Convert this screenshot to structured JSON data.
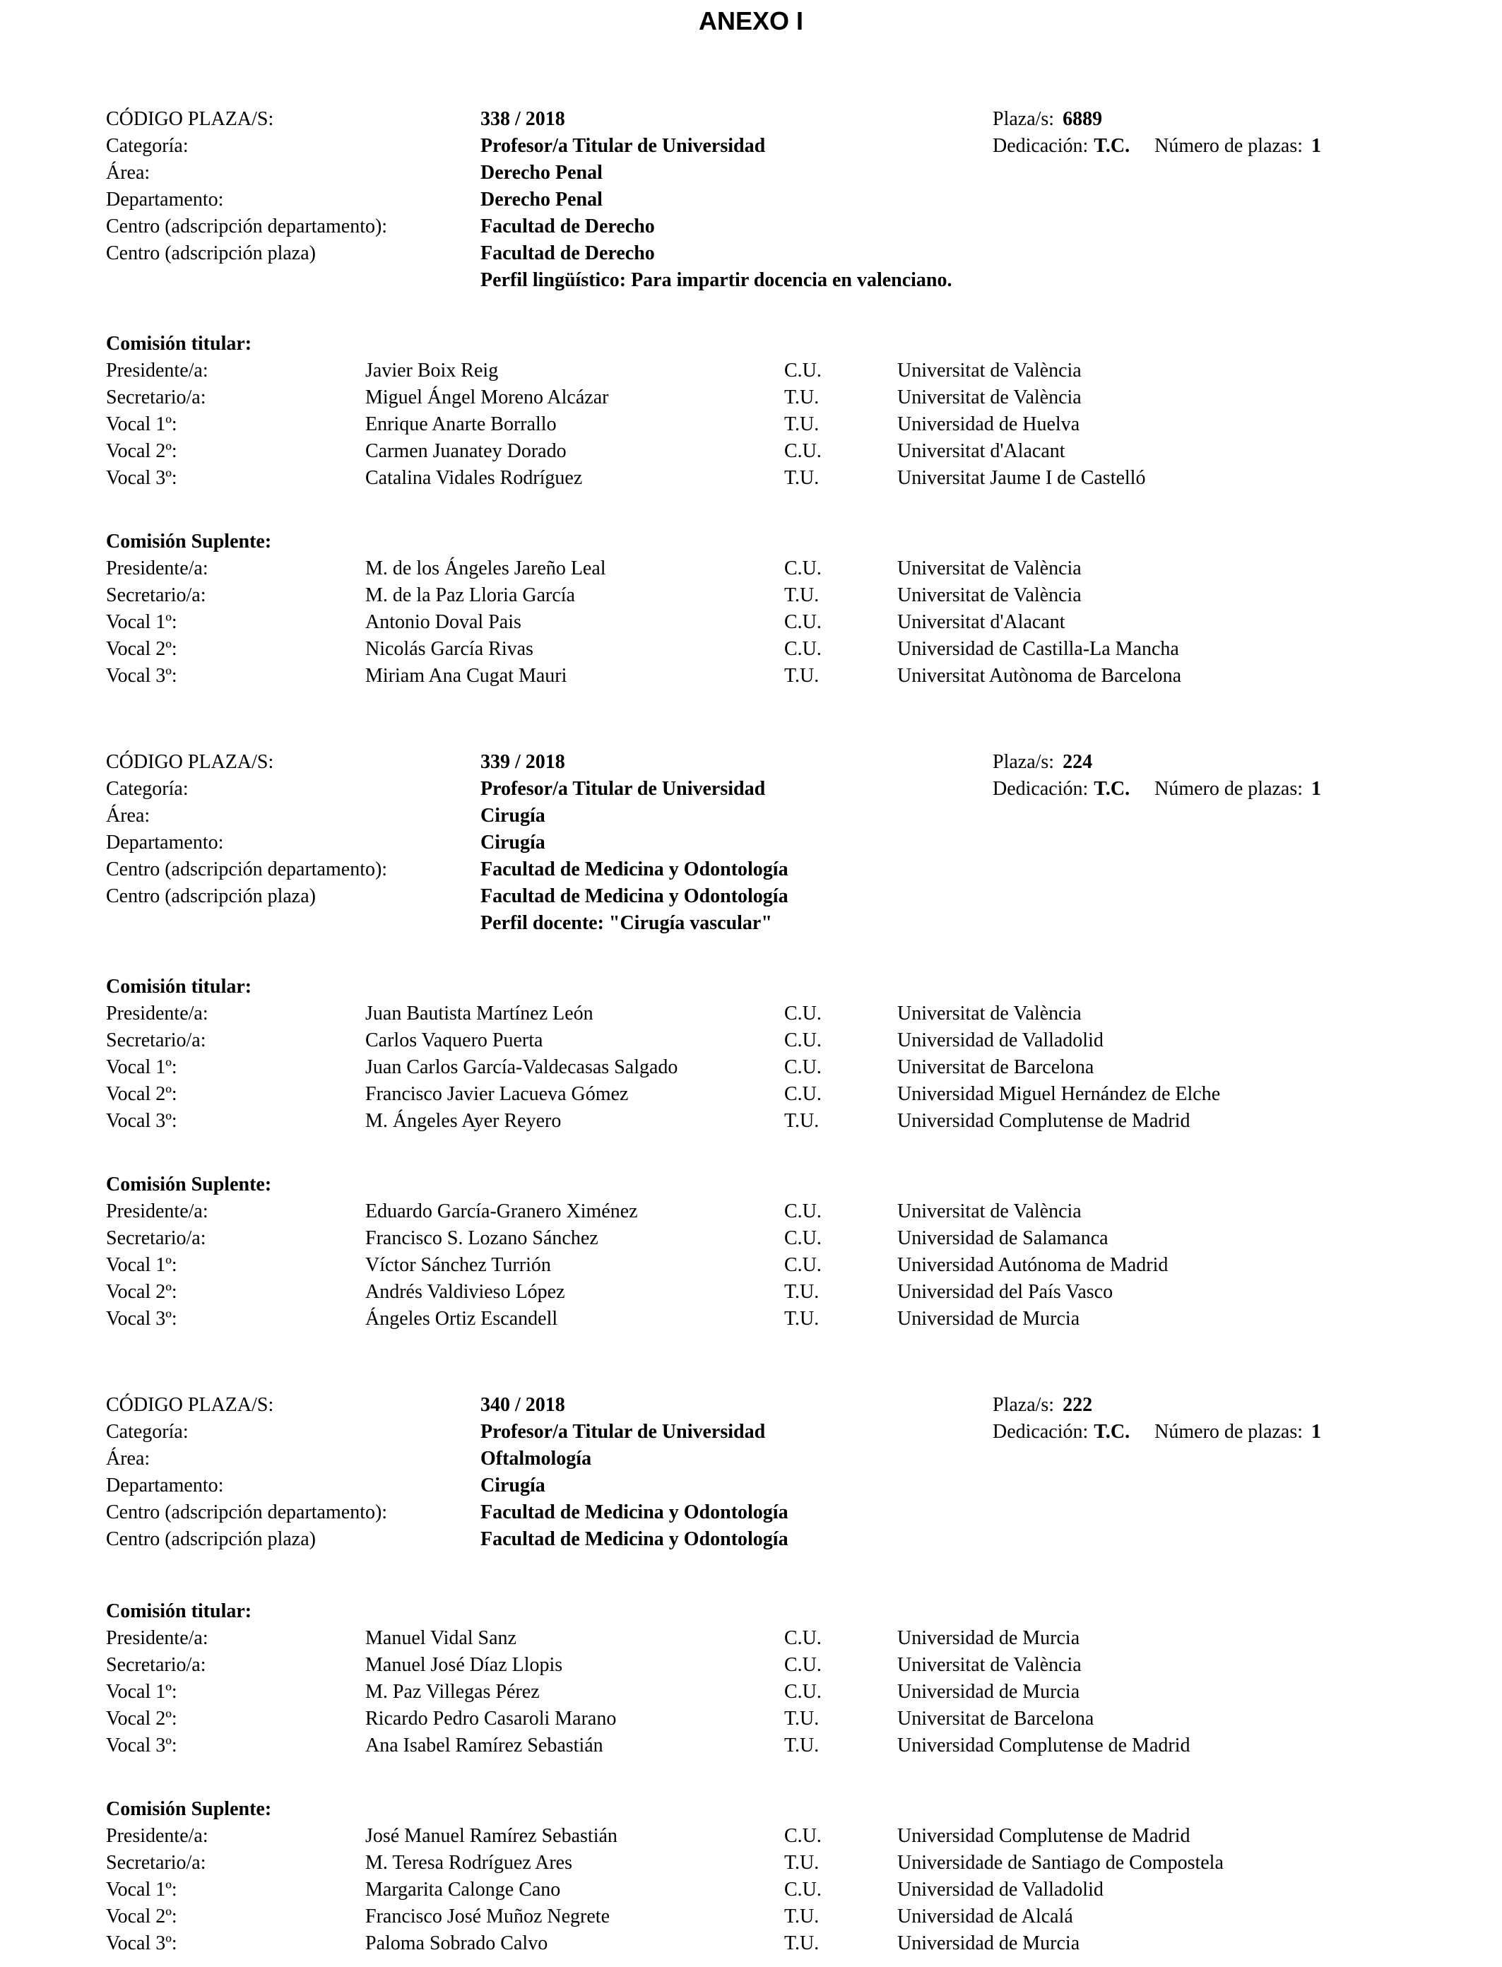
{
  "page_title": "ANEXO I",
  "labels": {
    "codigo": "CÓDIGO PLAZA/S:",
    "categoria": "Categoría:",
    "area": "Área:",
    "departamento": "Departamento:",
    "centro_departamento": "Centro (adscripción departamento):",
    "centro_plaza": "Centro (adscripción plaza)",
    "plaza": "Plaza/s:",
    "dedicacion": "Dedicación:",
    "numero_plazas": "Número de plazas:",
    "comision_titular": "Comisión titular:",
    "comision_suplente": "Comisión Suplente:"
  },
  "blocks": [
    {
      "codigo": "338 / 2018",
      "plaza": "6889",
      "categoria": "Profesor/a Titular de Universidad",
      "dedicacion": "T.C.",
      "numero_plazas": "1",
      "area": "Derecho Penal",
      "departamento": "Derecho Penal",
      "centro_departamento": "Facultad de Derecho",
      "centro_plaza": "Facultad de Derecho",
      "perfil": "Perfil lingüístico: Para impartir docencia en valenciano.",
      "titular": [
        {
          "role": "Presidente/a:",
          "name": "Javier Boix Reig",
          "cat": "C.U.",
          "university": "Universitat de València"
        },
        {
          "role": "Secretario/a:",
          "name": "Miguel Ángel Moreno Alcázar",
          "cat": "T.U.",
          "university": "Universitat de València"
        },
        {
          "role": "Vocal 1º:",
          "name": "Enrique Anarte Borrallo",
          "cat": "T.U.",
          "university": "Universidad de Huelva"
        },
        {
          "role": "Vocal 2º:",
          "name": "Carmen Juanatey Dorado",
          "cat": "C.U.",
          "university": "Universitat d'Alacant"
        },
        {
          "role": "Vocal 3º:",
          "name": "Catalina Vidales Rodríguez",
          "cat": "T.U.",
          "university": "Universitat Jaume I de Castelló"
        }
      ],
      "suplente": [
        {
          "role": "Presidente/a:",
          "name": "M. de los Ángeles Jareño Leal",
          "cat": "C.U.",
          "university": "Universitat de València"
        },
        {
          "role": "Secretario/a:",
          "name": "M. de la Paz Lloria García",
          "cat": "T.U.",
          "university": "Universitat de València"
        },
        {
          "role": "Vocal 1º:",
          "name": "Antonio Doval Pais",
          "cat": "C.U.",
          "university": "Universitat d'Alacant"
        },
        {
          "role": "Vocal 2º:",
          "name": "Nicolás García Rivas",
          "cat": "C.U.",
          "university": "Universidad de Castilla-La Mancha"
        },
        {
          "role": "Vocal 3º:",
          "name": "Miriam Ana Cugat Mauri",
          "cat": "T.U.",
          "university": "Universitat Autònoma de Barcelona"
        }
      ]
    },
    {
      "codigo": "339 / 2018",
      "plaza": "224",
      "categoria": "Profesor/a Titular de Universidad",
      "dedicacion": "T.C.",
      "numero_plazas": "1",
      "area": "Cirugía",
      "departamento": "Cirugía",
      "centro_departamento": "Facultad de Medicina y Odontología",
      "centro_plaza": "Facultad de Medicina y Odontología",
      "perfil": "Perfil docente: \"Cirugía vascular\"",
      "titular": [
        {
          "role": "Presidente/a:",
          "name": "Juan Bautista Martínez León",
          "cat": "C.U.",
          "university": "Universitat de València"
        },
        {
          "role": "Secretario/a:",
          "name": "Carlos Vaquero Puerta",
          "cat": "C.U.",
          "university": "Universidad de Valladolid"
        },
        {
          "role": "Vocal 1º:",
          "name": "Juan Carlos García-Valdecasas Salgado",
          "cat": "C.U.",
          "university": "Universitat de Barcelona"
        },
        {
          "role": "Vocal 2º:",
          "name": "Francisco Javier Lacueva Gómez",
          "cat": "C.U.",
          "university": "Universidad Miguel Hernández de Elche"
        },
        {
          "role": "Vocal 3º:",
          "name": "M. Ángeles Ayer Reyero",
          "cat": "T.U.",
          "university": "Universidad Complutense de Madrid"
        }
      ],
      "suplente": [
        {
          "role": "Presidente/a:",
          "name": "Eduardo García-Granero Ximénez",
          "cat": "C.U.",
          "university": "Universitat de València"
        },
        {
          "role": "Secretario/a:",
          "name": "Francisco S. Lozano Sánchez",
          "cat": "C.U.",
          "university": "Universidad de Salamanca"
        },
        {
          "role": "Vocal 1º:",
          "name": "Víctor Sánchez Turrión",
          "cat": "C.U.",
          "university": "Universidad Autónoma de Madrid"
        },
        {
          "role": "Vocal 2º:",
          "name": "Andrés Valdivieso López",
          "cat": "T.U.",
          "university": "Universidad del País Vasco"
        },
        {
          "role": "Vocal 3º:",
          "name": "Ángeles Ortiz Escandell",
          "cat": "T.U.",
          "university": "Universidad de Murcia"
        }
      ]
    },
    {
      "codigo": "340 / 2018",
      "plaza": "222",
      "categoria": "Profesor/a Titular de Universidad",
      "dedicacion": "T.C.",
      "numero_plazas": "1",
      "area": "Oftalmología",
      "departamento": "Cirugía",
      "centro_departamento": "Facultad de Medicina y Odontología",
      "centro_plaza": "Facultad de Medicina y Odontología",
      "titular": [
        {
          "role": "Presidente/a:",
          "name": "Manuel Vidal Sanz",
          "cat": "C.U.",
          "university": "Universidad de Murcia"
        },
        {
          "role": "Secretario/a:",
          "name": "Manuel José Díaz Llopis",
          "cat": "C.U.",
          "university": "Universitat de València"
        },
        {
          "role": "Vocal 1º:",
          "name": "M. Paz Villegas Pérez",
          "cat": "C.U.",
          "university": "Universidad de Murcia"
        },
        {
          "role": "Vocal 2º:",
          "name": "Ricardo Pedro Casaroli Marano",
          "cat": "T.U.",
          "university": "Universitat de Barcelona"
        },
        {
          "role": "Vocal 3º:",
          "name": "Ana Isabel Ramírez Sebastián",
          "cat": "T.U.",
          "university": "Universidad Complutense de Madrid"
        }
      ],
      "suplente": [
        {
          "role": "Presidente/a:",
          "name": "José Manuel Ramírez Sebastián",
          "cat": "C.U.",
          "university": "Universidad Complutense de Madrid"
        },
        {
          "role": "Secretario/a:",
          "name": "M. Teresa Rodríguez Ares",
          "cat": "T.U.",
          "university": "Universidade de Santiago de Compostela"
        },
        {
          "role": "Vocal 1º:",
          "name": "Margarita Calonge Cano",
          "cat": "C.U.",
          "university": "Universidad de Valladolid"
        },
        {
          "role": "Vocal 2º:",
          "name": "Francisco José Muñoz Negrete",
          "cat": "T.U.",
          "university": "Universidad de Alcalá"
        },
        {
          "role": "Vocal 3º:",
          "name": "Paloma Sobrado Calvo",
          "cat": "T.U.",
          "university": "Universidad de Murcia"
        }
      ]
    }
  ]
}
